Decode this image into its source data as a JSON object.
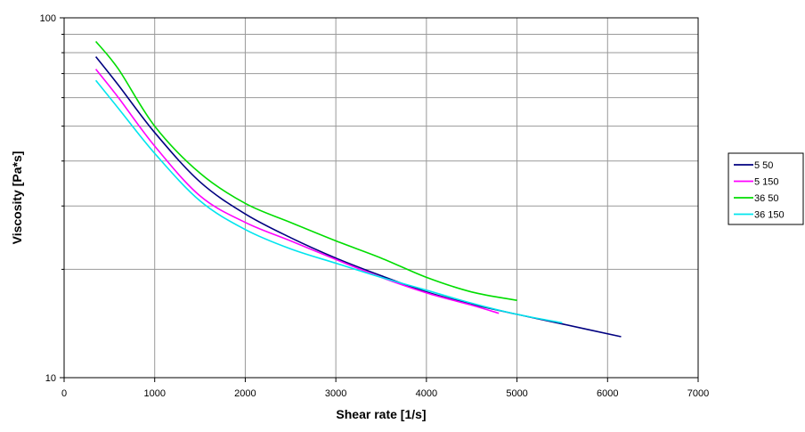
{
  "chart_data": {
    "type": "line",
    "title": "",
    "xlabel": "Shear rate [1/s]",
    "ylabel": "Viscosity [Pa*s]",
    "xlim": [
      0,
      7000
    ],
    "ylim": [
      10,
      100
    ],
    "yscale": "log",
    "grid": true,
    "legend_position": "right",
    "x_ticks": [
      "0",
      "1000",
      "2000",
      "3000",
      "4000",
      "5000",
      "6000",
      "7000"
    ],
    "y_ticks": [
      "10",
      "100"
    ],
    "series": [
      {
        "name": "5 50",
        "color": "#000080",
        "points": [
          [
            350,
            78
          ],
          [
            600,
            65
          ],
          [
            1000,
            48
          ],
          [
            1500,
            35
          ],
          [
            2000,
            28.5
          ],
          [
            2500,
            24.5
          ],
          [
            3000,
            21.5
          ],
          [
            3500,
            19.2
          ],
          [
            4000,
            17.3
          ],
          [
            4500,
            16
          ],
          [
            5000,
            15
          ],
          [
            5500,
            14.1
          ],
          [
            6150,
            13
          ]
        ]
      },
      {
        "name": "5 150",
        "color": "#ff00ff",
        "points": [
          [
            350,
            72
          ],
          [
            600,
            60
          ],
          [
            1000,
            44
          ],
          [
            1500,
            32
          ],
          [
            2000,
            27
          ],
          [
            2500,
            24
          ],
          [
            3000,
            21.3
          ],
          [
            3500,
            19
          ],
          [
            4000,
            17.2
          ],
          [
            4500,
            15.9
          ],
          [
            4800,
            15.1
          ]
        ]
      },
      {
        "name": "36 50",
        "color": "#00dd00",
        "points": [
          [
            350,
            86
          ],
          [
            600,
            72
          ],
          [
            1000,
            50
          ],
          [
            1500,
            37
          ],
          [
            2000,
            30.5
          ],
          [
            2500,
            27
          ],
          [
            3000,
            24
          ],
          [
            3500,
            21.5
          ],
          [
            4000,
            19
          ],
          [
            4500,
            17.3
          ],
          [
            5000,
            16.4
          ]
        ]
      },
      {
        "name": "36 150",
        "color": "#00e5ee",
        "points": [
          [
            350,
            67
          ],
          [
            600,
            56
          ],
          [
            1000,
            42
          ],
          [
            1500,
            31
          ],
          [
            2000,
            25.8
          ],
          [
            2500,
            22.8
          ],
          [
            3000,
            20.8
          ],
          [
            3500,
            19
          ],
          [
            4000,
            17.5
          ],
          [
            4500,
            16.1
          ],
          [
            5000,
            15
          ],
          [
            5500,
            14.2
          ]
        ]
      }
    ]
  }
}
